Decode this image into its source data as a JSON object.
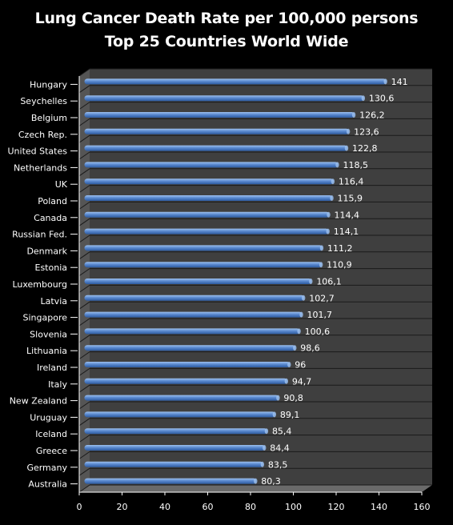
{
  "chart_data": {
    "type": "bar",
    "orientation": "horizontal",
    "title": "Lung Cancer Death Rate per 100,000 persons",
    "subtitle": "Top 25 Countries World Wide",
    "categories": [
      "Hungary",
      "Seychelles",
      "Belgium",
      "Czech Rep.",
      "United States",
      "Netherlands",
      "UK",
      "Poland",
      "Canada",
      "Russian Fed.",
      "Denmark",
      "Estonia",
      "Luxembourg",
      "Latvia",
      "Singapore",
      "Slovenia",
      "Lithuania",
      "Ireland",
      "Italy",
      "New Zealand",
      "Uruguay",
      "Iceland",
      "Greece",
      "Germany",
      "Australia"
    ],
    "values": [
      141,
      130.6,
      126.2,
      123.6,
      122.8,
      118.5,
      116.4,
      115.9,
      114.4,
      114.1,
      111.2,
      110.9,
      106.1,
      102.7,
      101.7,
      100.6,
      98.6,
      96,
      94.7,
      90.8,
      89.1,
      85.4,
      84.4,
      83.5,
      80.3
    ],
    "value_labels": [
      "141",
      "130,6",
      "126,2",
      "123,6",
      "122,8",
      "118,5",
      "116,4",
      "115,9",
      "114,4",
      "114,1",
      "111,2",
      "110,9",
      "106,1",
      "102,7",
      "101,7",
      "100,6",
      "98,6",
      "96",
      "94,7",
      "90,8",
      "89,1",
      "85,4",
      "84,4",
      "83,5",
      "80,3"
    ],
    "xlim": [
      0,
      160
    ],
    "x_ticks": [
      0,
      20,
      40,
      60,
      80,
      100,
      120,
      140,
      160
    ],
    "grid": true,
    "colors": {
      "background": "#000000",
      "plot_area": "#3f3f3f",
      "grid": "#1a1a1a",
      "bar_light": "#9ec1ee",
      "bar_mid": "#5b8ad0",
      "bar_dark": "#2c5aa0",
      "text": "#ffffff"
    }
  }
}
